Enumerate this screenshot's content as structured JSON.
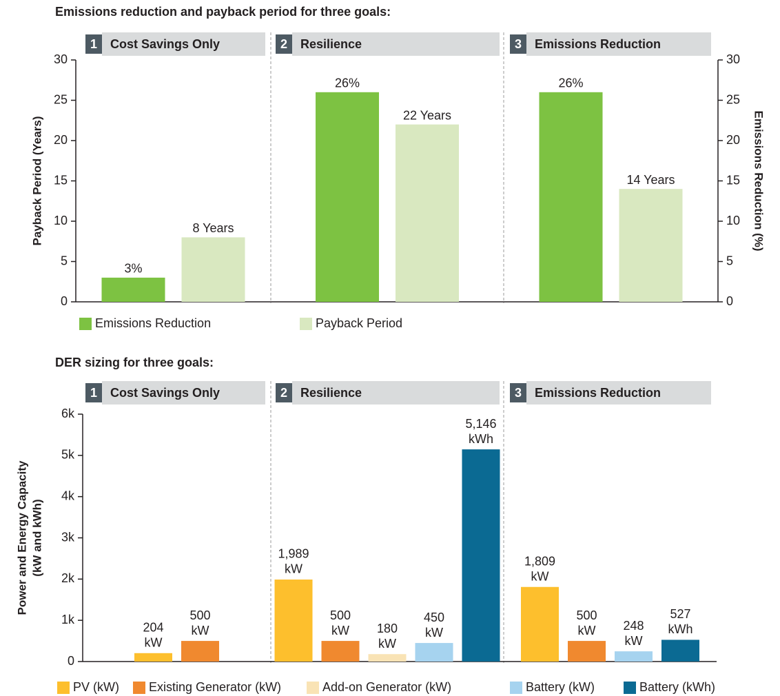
{
  "chart_data": [
    {
      "type": "bar",
      "title": "Emissions reduction and payback period for three goals:",
      "categories": [
        "Cost Savings Only",
        "Resilience",
        "Emissions Reduction"
      ],
      "category_numbers": [
        1,
        2,
        3
      ],
      "ylabel": "Payback Period (Years)",
      "y2label": "Emissions Reduction (%)",
      "ylim": [
        0,
        30
      ],
      "yticks": [
        0,
        5,
        10,
        15,
        20,
        25,
        30
      ],
      "y2lim": [
        0,
        30
      ],
      "y2ticks": [
        0,
        5,
        10,
        15,
        20,
        25,
        30
      ],
      "series": [
        {
          "name": "Emissions Reduction",
          "color": "#7dc242",
          "axis": "y2",
          "values": [
            3,
            26,
            26
          ],
          "value_labels": [
            "3%",
            "26%",
            "26%"
          ]
        },
        {
          "name": "Payback Period",
          "color": "#d9e8c0",
          "values": [
            8,
            22,
            14
          ],
          "value_labels": [
            "8 Years",
            "22 Years",
            "14 Years"
          ]
        }
      ]
    },
    {
      "type": "bar",
      "title": "DER sizing for three goals:",
      "categories": [
        "Cost Savings Only",
        "Resilience",
        "Emissions Reduction"
      ],
      "category_numbers": [
        1,
        2,
        3
      ],
      "ylabel": [
        "Power and Energy Capacity",
        "(kW and kWh)"
      ],
      "ylim": [
        0,
        6000
      ],
      "yticks": [
        0,
        {
          "value": 1000,
          "label": "1k"
        },
        {
          "value": 2000,
          "label": "2k"
        },
        {
          "value": 3000,
          "label": "3k"
        },
        {
          "value": 4000,
          "label": "4k"
        },
        {
          "value": 5000,
          "label": "5k"
        },
        {
          "value": 6000,
          "label": "6k"
        }
      ],
      "series": [
        {
          "name": "PV (kW)",
          "color": "#fdbf2d",
          "values": [
            204,
            1989,
            1809
          ],
          "value_labels": [
            [
              "204",
              "kW"
            ],
            [
              "1,989",
              "kW"
            ],
            [
              "1,809",
              "kW"
            ]
          ]
        },
        {
          "name": "Existing Generator (kW)",
          "color": "#f0892f",
          "values": [
            500,
            500,
            500
          ],
          "value_labels": [
            [
              "500",
              "kW"
            ],
            [
              "500",
              "kW"
            ],
            [
              "500",
              "kW"
            ]
          ]
        },
        {
          "name": "Add-on Generator (kW)",
          "color": "#f9e3b5",
          "values": [
            null,
            180,
            null
          ],
          "value_labels": [
            null,
            [
              "180",
              "kW"
            ],
            null
          ]
        },
        {
          "name": "Battery (kW)",
          "color": "#a6d3ef",
          "values": [
            null,
            450,
            248
          ],
          "value_labels": [
            null,
            [
              "450",
              "kW"
            ],
            [
              "248",
              "kW"
            ]
          ]
        },
        {
          "name": "Battery (kWh)",
          "color": "#0b6a93",
          "values": [
            null,
            5146,
            527
          ],
          "value_labels": [
            null,
            [
              "5,146",
              "kWh"
            ],
            [
              "527",
              "kWh"
            ]
          ]
        }
      ]
    }
  ]
}
